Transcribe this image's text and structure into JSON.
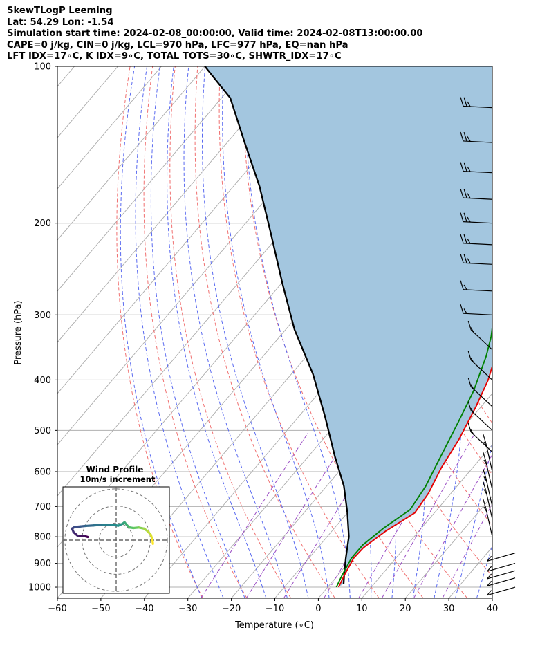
{
  "header": {
    "title": "SkewTLogP Leeming",
    "location": "Lat: 54.29   Lon: -1.54",
    "times": "Simulation start time: 2024-02-08_00:00:00, Valid time: 2024-02-08T13:00:00.00",
    "params": "CAPE=0 j/kg, CIN=0 j/kg, LCL=970 hPa, LFC=977 hPa, EQ=nan hPa",
    "indices": "LFT IDX=17∘C, K IDX=9∘C, TOTAL TOTS=30∘C, SHWTR_IDX=17∘C"
  },
  "chart_data": {
    "type": "line",
    "subtype": "skew-T log-p diagram",
    "xlabel": "Temperature (∘C)",
    "ylabel": "Pressure (hPa)",
    "xlim": [
      -60,
      40
    ],
    "ylim": [
      1050,
      100
    ],
    "y_scale": "log",
    "x_ticks": [
      "−60",
      "−50",
      "−40",
      "−30",
      "−20",
      "−10",
      "0",
      "10",
      "20",
      "30",
      "40"
    ],
    "y_ticks": [
      "1000",
      "900",
      "800",
      "700",
      "600",
      "500",
      "400",
      "300",
      "200",
      "100"
    ],
    "grid": true,
    "background_lines": [
      "dry adiabats (red dashed)",
      "moist adiabats (blue dashed)",
      "mixing ratio (purple dash-dot)",
      "skewed isotherms (grey)"
    ],
    "colors": {
      "temperature": "#e60000",
      "dewpoint": "#008000",
      "parcel": "#000000",
      "cape_fill": "#a3c6df",
      "dry_adiabat": "#f07070",
      "moist_adiabat": "#5a6af0",
      "mixing_ratio": "#9a4cc4",
      "isotherm": "#aaaaaa"
    },
    "series": [
      {
        "key": "temperature",
        "points": [
          [
            2.5,
            1000
          ],
          [
            1.5,
            950
          ],
          [
            0.3,
            880
          ],
          [
            0.5,
            840
          ],
          [
            2.4,
            780
          ],
          [
            5.5,
            720
          ],
          [
            4.8,
            660
          ],
          [
            2.8,
            590
          ],
          [
            1.3,
            520
          ],
          [
            -1.2,
            450
          ],
          [
            -3.6,
            400
          ],
          [
            -7.4,
            350
          ],
          [
            -12,
            300
          ],
          [
            -17,
            250
          ],
          [
            -20.8,
            215
          ],
          [
            -21,
            208
          ],
          [
            -20,
            200
          ],
          [
            -16.8,
            185
          ],
          [
            -12.4,
            160
          ],
          [
            -9.3,
            145
          ],
          [
            -7.8,
            130
          ],
          [
            -5.3,
            115
          ],
          [
            -4.7,
            100
          ]
        ]
      },
      {
        "key": "dewpoint",
        "points": [
          [
            2,
            1000
          ],
          [
            1,
            950
          ],
          [
            -0.2,
            880
          ],
          [
            -0.2,
            830
          ],
          [
            1.3,
            770
          ],
          [
            3.8,
            710
          ],
          [
            2.8,
            640
          ],
          [
            0.4,
            560
          ],
          [
            -2.3,
            480
          ],
          [
            -4.8,
            420
          ],
          [
            -8.7,
            360
          ],
          [
            -11.4,
            330
          ],
          [
            -15,
            300
          ],
          [
            -20,
            260
          ],
          [
            -23.5,
            230
          ],
          [
            -25,
            215
          ],
          [
            -23.8,
            200
          ],
          [
            -21,
            185
          ],
          [
            -18.5,
            170
          ],
          [
            -19,
            160
          ],
          [
            -22.8,
            142
          ],
          [
            -23.3,
            130
          ],
          [
            -20.3,
            115
          ],
          [
            -18.6,
            100
          ]
        ]
      },
      {
        "key": "parcel",
        "points": [
          [
            3,
            985
          ],
          [
            1.5,
            950
          ],
          [
            -1.5,
            880
          ],
          [
            -5,
            800
          ],
          [
            -10,
            720
          ],
          [
            -16,
            640
          ],
          [
            -24,
            560
          ],
          [
            -34,
            470
          ],
          [
            -45,
            390
          ],
          [
            -58,
            320
          ],
          [
            -70,
            260
          ],
          [
            -82,
            210
          ],
          [
            -94,
            170
          ],
          [
            -106,
            140
          ],
          [
            -118,
            115
          ],
          [
            -130,
            100
          ]
        ]
      }
    ],
    "wind_barbs": [
      "1000",
      "960",
      "930",
      "900",
      "860",
      "800",
      "740",
      "700",
      "650",
      "600",
      "550",
      "500",
      "450",
      "400",
      "350",
      "300",
      "270",
      "240",
      "220",
      "200",
      "180",
      "160",
      "140",
      "120"
    ],
    "inset": {
      "title": "Wind Profile",
      "subtitle": "10m/s increment",
      "hodograph": [
        [
          14,
          -1.4
        ],
        [
          13.8,
          0.2
        ],
        [
          13.2,
          2
        ],
        [
          12,
          3.4
        ],
        [
          10.6,
          4.4
        ],
        [
          8.6,
          4.8
        ],
        [
          6.6,
          4.6
        ],
        [
          5.2,
          4.8
        ],
        [
          4.2,
          5.6
        ],
        [
          3.2,
          6.8
        ],
        [
          2.4,
          6.2
        ],
        [
          0.8,
          5.5
        ],
        [
          -1.6,
          5.8
        ],
        [
          -5,
          5.9
        ],
        [
          -8.6,
          5.6
        ],
        [
          -11.8,
          5.4
        ],
        [
          -13.6,
          5.2
        ],
        [
          -15.8,
          5
        ],
        [
          -16.8,
          4.4
        ],
        [
          -16.2,
          3
        ],
        [
          -14.6,
          1.6
        ],
        [
          -12.2,
          1.6
        ],
        [
          -10.8,
          1.2
        ]
      ]
    }
  }
}
